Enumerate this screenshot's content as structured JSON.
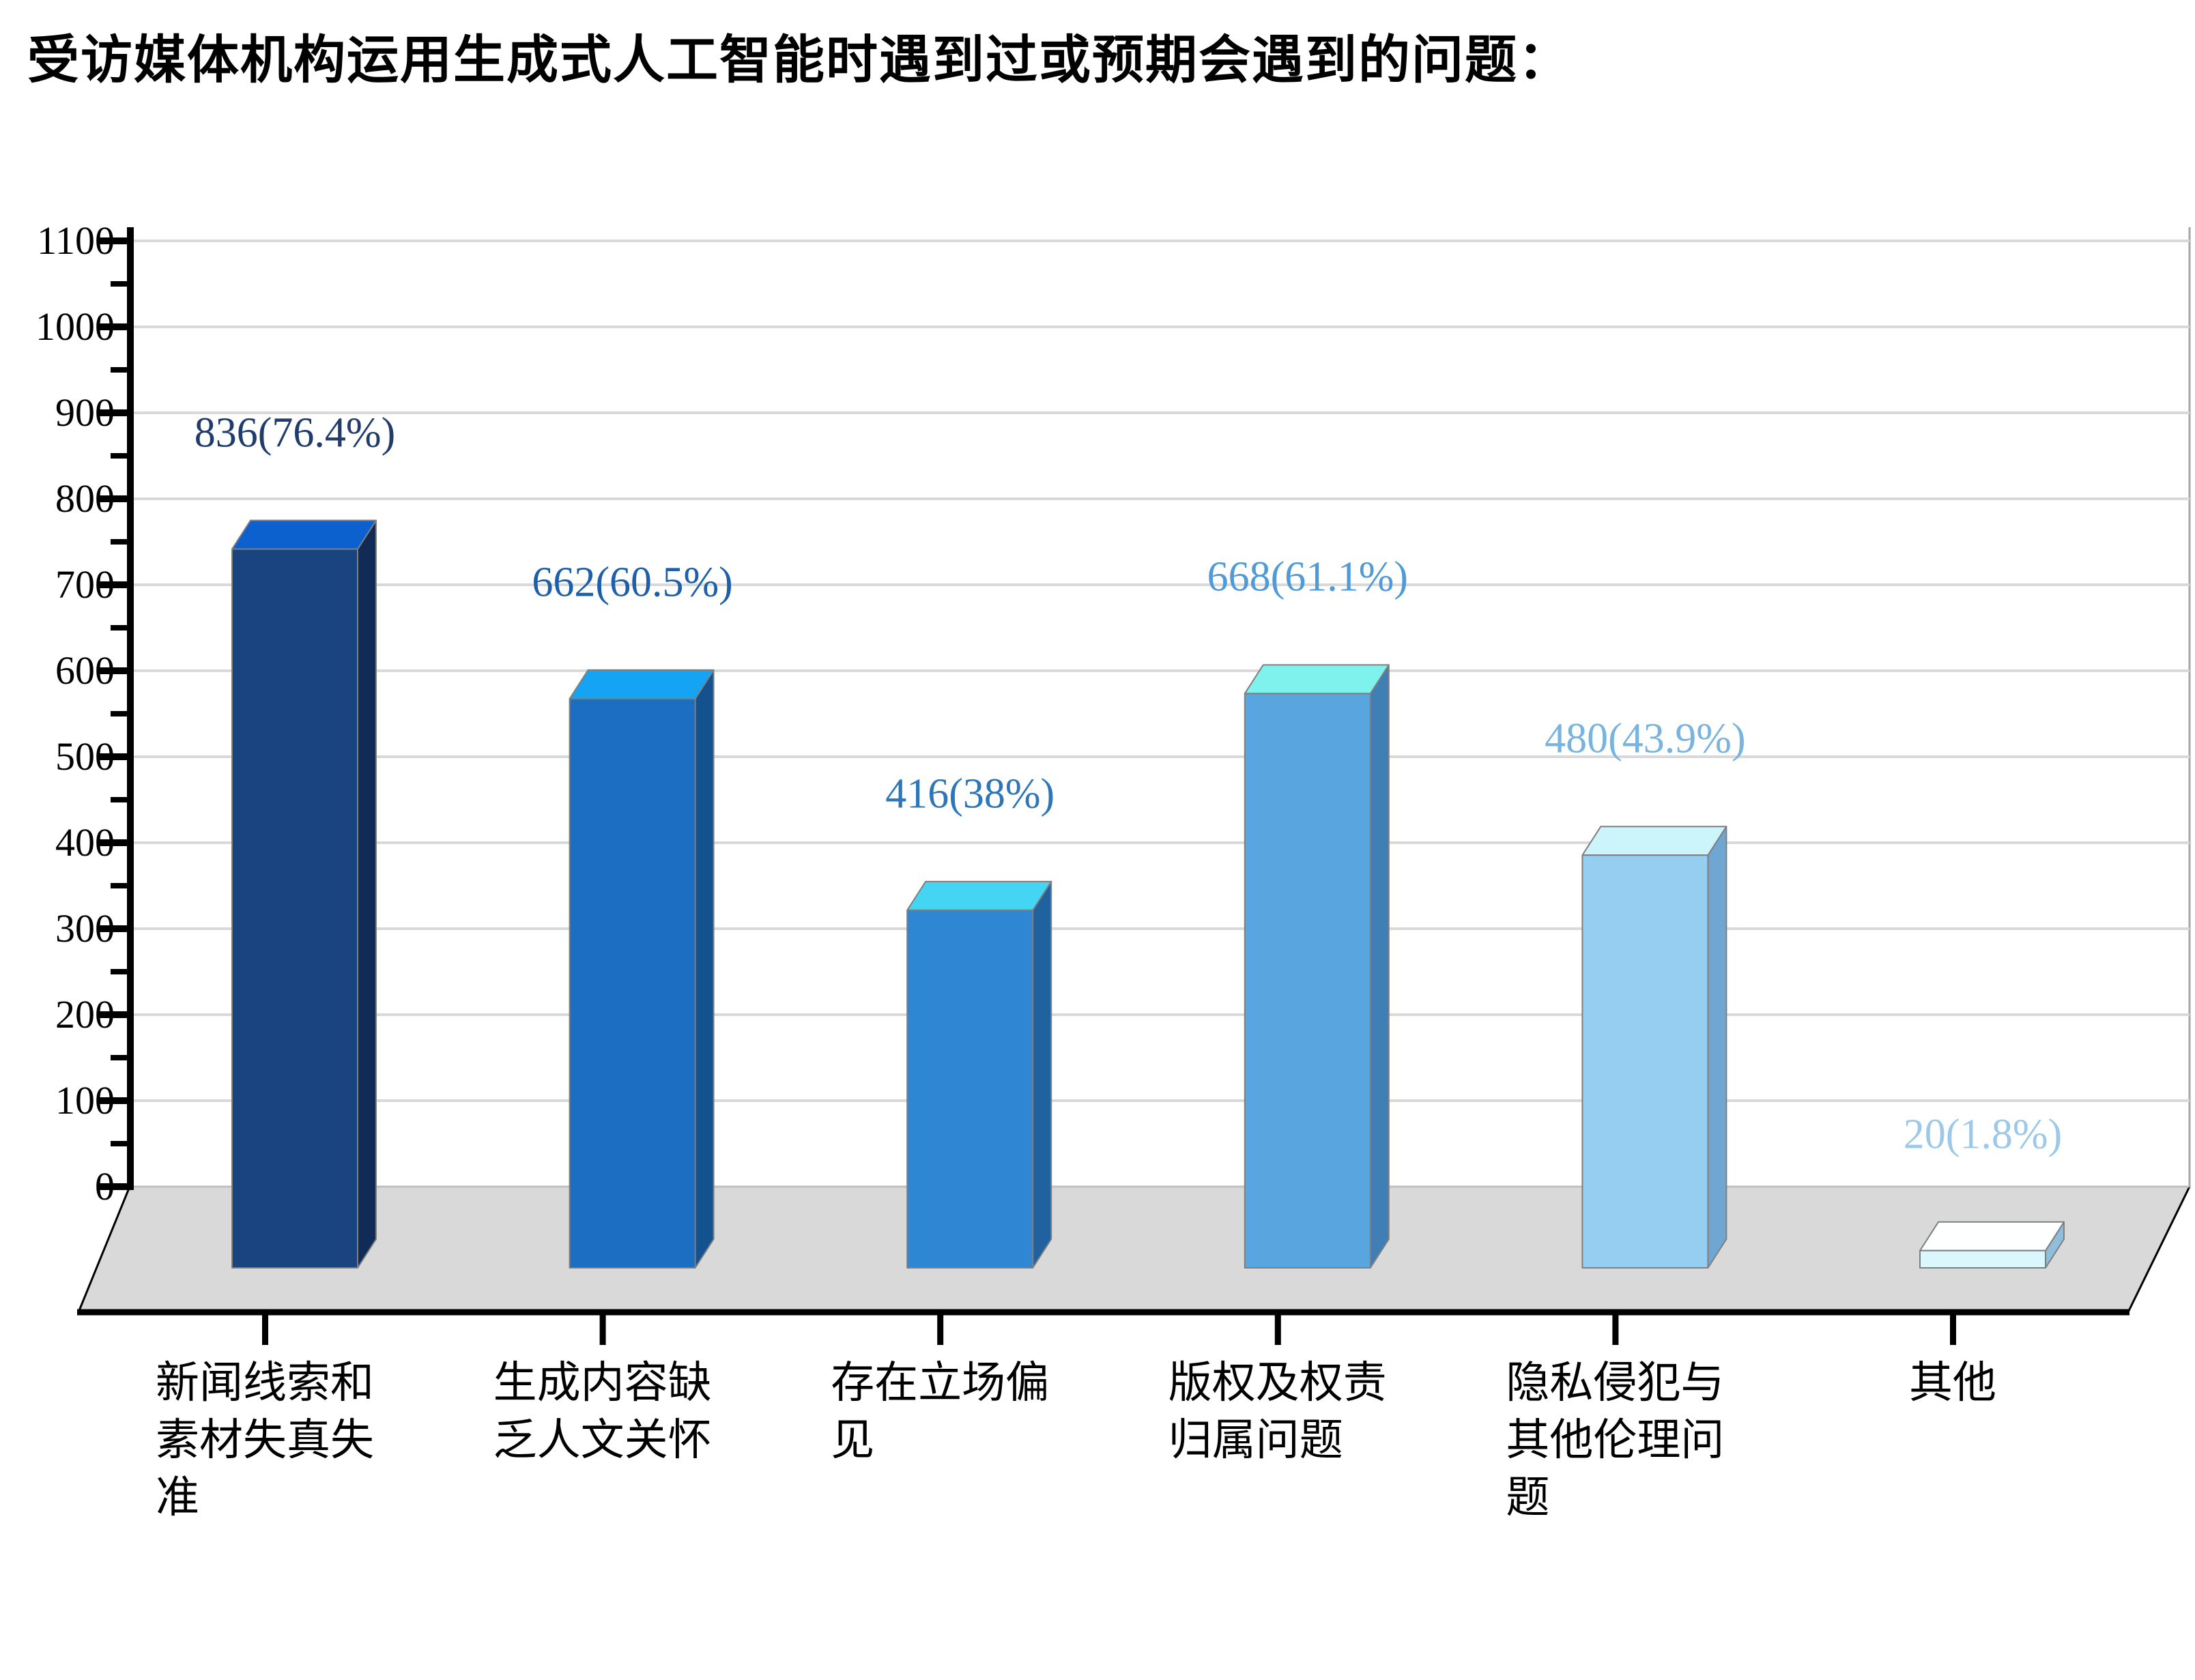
{
  "title": "受访媒体机构运用生成式人工智能时遇到过或预期会遇到的问题：",
  "chart_data": {
    "type": "bar",
    "projection": "3d",
    "title": "受访媒体机构运用生成式人工智能时遇到过或预期会遇到的问题：",
    "categories": [
      "新闻线索和素材失真失准",
      "生成内容缺乏人文关怀",
      "存在立场偏见",
      "版权及权责归属问题",
      "隐私侵犯与其他伦理问题",
      "其他"
    ],
    "category_lines": [
      [
        "新闻线索和",
        "素材失真失",
        "准"
      ],
      [
        "生成内容缺",
        "乏人文关怀"
      ],
      [
        "存在立场偏",
        "见"
      ],
      [
        "版权及权责",
        "归属问题"
      ],
      [
        "隐私侵犯与",
        "其他伦理问",
        "题"
      ],
      [
        "其他"
      ]
    ],
    "values": [
      836,
      662,
      416,
      668,
      480,
      20
    ],
    "percent": [
      "76.4%",
      "60.5%",
      "38%",
      "61.1%",
      "43.9%",
      "1.8%"
    ],
    "data_labels": [
      "836(76.4%)",
      "662(60.5%)",
      "416(38%)",
      "668(61.1%)",
      "480(43.9%)",
      "20(1.8%)"
    ],
    "ylim": [
      0,
      1100
    ],
    "ytick_interval": 100,
    "yticks": [
      "0",
      "100",
      "200",
      "300",
      "400",
      "500",
      "600",
      "700",
      "800",
      "900",
      "1000",
      "1100"
    ],
    "grid": true,
    "legend": false,
    "colors": {
      "grid": "#D9D9D9",
      "axis": "#000000",
      "floor": "#D9D9D9",
      "floor_edge": "#000000",
      "bar_stroke": "#7F7F7F",
      "wall_right_edge": "#A6A6A6",
      "zero_line": "#BFBFBF",
      "title": "#000000",
      "tick_label": "#000000"
    },
    "bars": [
      {
        "front": "#19447F",
        "top": "#0D61CE",
        "side": "#102C56",
        "label_color": "#1F3C6D"
      },
      {
        "front": "#1B6EC1",
        "top": "#15A4F3",
        "side": "#14528F",
        "label_color": "#1E5FA9"
      },
      {
        "front": "#2F86D3",
        "top": "#44D5F5",
        "side": "#20629F",
        "label_color": "#2E76B8"
      },
      {
        "front": "#58A5E0",
        "top": "#80F2EE",
        "side": "#3F7FB5",
        "label_color": "#4F9AD7"
      },
      {
        "front": "#96CEF1",
        "top": "#CBF4FB",
        "side": "#6FA7D2",
        "label_color": "#79B3DF"
      },
      {
        "front": "#DAF7FD",
        "top": "#FEFFFF",
        "side": "#8EBEDA",
        "label_color": "#9CC9E9"
      }
    ]
  }
}
